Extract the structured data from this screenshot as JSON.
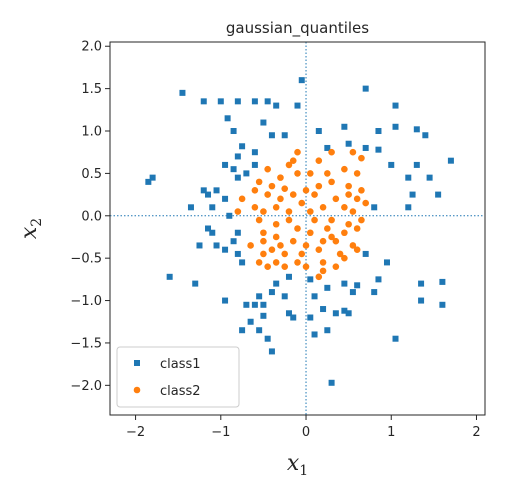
{
  "chart_data": {
    "type": "scatter",
    "title": "gaussian_quantiles",
    "xlabel": {
      "main": "x",
      "sub": "1"
    },
    "ylabel": {
      "main": "x",
      "sub": "2"
    },
    "xlim": [
      -2.3,
      2.1
    ],
    "ylim": [
      -2.35,
      2.05
    ],
    "xticks": [
      -2,
      -1,
      0,
      1,
      2
    ],
    "xtick_labels": [
      "−2",
      "−1",
      "0",
      "1",
      "2"
    ],
    "yticks": [
      -2.0,
      -1.5,
      -1.0,
      -0.5,
      0.0,
      0.5,
      1.0,
      1.5,
      2.0
    ],
    "ytick_labels": [
      "−2.0",
      "−1.5",
      "−1.0",
      "−0.5",
      "0.0",
      "0.5",
      "1.0",
      "1.5",
      "2.0"
    ],
    "reference_lines": {
      "x": 0,
      "y": 0,
      "style": "dotted",
      "color": "#1f77b4"
    },
    "grid": false,
    "legend": {
      "position": "lower-left"
    },
    "series": [
      {
        "name": "class1",
        "marker": "square",
        "color": "#1f77b4",
        "points": [
          [
            -1.45,
            1.45
          ],
          [
            -1.2,
            1.35
          ],
          [
            -1.0,
            1.35
          ],
          [
            -0.8,
            1.35
          ],
          [
            -0.6,
            1.35
          ],
          [
            -0.45,
            1.35
          ],
          [
            -0.35,
            1.3
          ],
          [
            -0.05,
            1.6
          ],
          [
            -0.1,
            1.3
          ],
          [
            0.7,
            1.5
          ],
          [
            1.05,
            1.3
          ],
          [
            -0.92,
            1.15
          ],
          [
            -0.5,
            1.1
          ],
          [
            -0.85,
            1.0
          ],
          [
            -0.4,
            0.95
          ],
          [
            -0.25,
            0.95
          ],
          [
            0.15,
            1.0
          ],
          [
            0.25,
            0.8
          ],
          [
            0.45,
            1.05
          ],
          [
            0.85,
            1.0
          ],
          [
            1.05,
            1.05
          ],
          [
            1.3,
            1.02
          ],
          [
            1.4,
            0.95
          ],
          [
            -0.75,
            0.82
          ],
          [
            -0.6,
            0.75
          ],
          [
            0.5,
            0.85
          ],
          [
            0.7,
            0.8
          ],
          [
            0.85,
            0.78
          ],
          [
            -0.8,
            0.7
          ],
          [
            -0.6,
            0.6
          ],
          [
            -0.85,
            0.55
          ],
          [
            -0.7,
            0.5
          ],
          [
            -0.8,
            0.45
          ],
          [
            -0.95,
            0.6
          ],
          [
            1.0,
            0.6
          ],
          [
            1.3,
            0.6
          ],
          [
            1.7,
            0.65
          ],
          [
            1.2,
            0.45
          ],
          [
            1.45,
            0.45
          ],
          [
            -1.8,
            0.45
          ],
          [
            -1.85,
            0.4
          ],
          [
            -1.2,
            0.3
          ],
          [
            -1.15,
            0.25
          ],
          [
            -1.05,
            0.3
          ],
          [
            -0.95,
            0.2
          ],
          [
            1.25,
            0.25
          ],
          [
            1.55,
            0.25
          ],
          [
            -1.35,
            0.1
          ],
          [
            -1.1,
            0.1
          ],
          [
            -0.9,
            0.0
          ],
          [
            0.8,
            0.1
          ],
          [
            1.2,
            0.1
          ],
          [
            -1.15,
            -0.15
          ],
          [
            -1.1,
            -0.2
          ],
          [
            -0.8,
            -0.2
          ],
          [
            -1.25,
            -0.35
          ],
          [
            -1.05,
            -0.35
          ],
          [
            -0.95,
            -0.4
          ],
          [
            -0.85,
            -0.3
          ],
          [
            -0.8,
            -0.45
          ],
          [
            0.7,
            -0.45
          ],
          [
            -0.75,
            -0.55
          ],
          [
            0.95,
            -0.55
          ],
          [
            -1.6,
            -0.72
          ],
          [
            -1.3,
            -0.8
          ],
          [
            0.85,
            -0.75
          ],
          [
            1.35,
            -0.8
          ],
          [
            1.6,
            -0.78
          ],
          [
            -0.35,
            -0.8
          ],
          [
            -0.2,
            -0.72
          ],
          [
            0.05,
            -0.75
          ],
          [
            0.25,
            -0.85
          ],
          [
            0.45,
            -0.8
          ],
          [
            0.6,
            -0.82
          ],
          [
            -0.4,
            -0.9
          ],
          [
            0.55,
            -0.9
          ],
          [
            0.8,
            -0.9
          ],
          [
            -0.55,
            -0.95
          ],
          [
            -0.25,
            -0.95
          ],
          [
            0.1,
            -0.95
          ],
          [
            -0.95,
            -1.0
          ],
          [
            -0.7,
            -1.05
          ],
          [
            -0.6,
            -1.05
          ],
          [
            -0.5,
            -1.05
          ],
          [
            1.35,
            -1.0
          ],
          [
            1.6,
            -1.05
          ],
          [
            0.2,
            -1.1
          ],
          [
            0.45,
            -1.12
          ],
          [
            0.5,
            -1.15
          ],
          [
            -0.5,
            -1.18
          ],
          [
            -0.2,
            -1.15
          ],
          [
            -0.15,
            -1.2
          ],
          [
            0.05,
            -1.2
          ],
          [
            0.35,
            -1.15
          ],
          [
            -0.65,
            -1.25
          ],
          [
            -0.55,
            -1.35
          ],
          [
            -0.45,
            -1.45
          ],
          [
            1.05,
            -1.45
          ],
          [
            -0.75,
            -1.35
          ],
          [
            0.1,
            -1.4
          ],
          [
            0.25,
            -1.35
          ],
          [
            -0.4,
            -1.6
          ],
          [
            0.3,
            -1.97
          ]
        ]
      },
      {
        "name": "class2",
        "marker": "circle",
        "color": "#ff7f0e",
        "points": [
          [
            -0.1,
            0.75
          ],
          [
            -0.15,
            0.65
          ],
          [
            0.15,
            0.65
          ],
          [
            0.3,
            0.75
          ],
          [
            0.55,
            0.75
          ],
          [
            0.65,
            0.68
          ],
          [
            -0.45,
            0.55
          ],
          [
            -0.3,
            0.45
          ],
          [
            -0.1,
            0.5
          ],
          [
            0.05,
            0.5
          ],
          [
            0.45,
            0.55
          ],
          [
            0.6,
            0.5
          ],
          [
            -0.55,
            0.4
          ],
          [
            -0.4,
            0.35
          ],
          [
            -0.25,
            0.32
          ],
          [
            0.15,
            0.35
          ],
          [
            0.3,
            0.4
          ],
          [
            0.5,
            0.35
          ],
          [
            -0.6,
            0.3
          ],
          [
            -0.45,
            0.25
          ],
          [
            -0.3,
            0.2
          ],
          [
            -0.15,
            0.25
          ],
          [
            0.0,
            0.3
          ],
          [
            0.1,
            0.25
          ],
          [
            0.35,
            0.2
          ],
          [
            0.5,
            0.25
          ],
          [
            0.6,
            0.2
          ],
          [
            0.65,
            0.3
          ],
          [
            -0.75,
            0.2
          ],
          [
            -0.6,
            0.1
          ],
          [
            -0.5,
            0.05
          ],
          [
            -0.35,
            0.1
          ],
          [
            -0.2,
            0.05
          ],
          [
            0.05,
            0.05
          ],
          [
            0.2,
            0.1
          ],
          [
            0.45,
            0.1
          ],
          [
            0.55,
            0.05
          ],
          [
            0.7,
            0.15
          ],
          [
            -0.8,
            0.05
          ],
          [
            -0.55,
            -0.05
          ],
          [
            -0.35,
            -0.1
          ],
          [
            -0.2,
            -0.05
          ],
          [
            0.1,
            -0.05
          ],
          [
            0.3,
            -0.05
          ],
          [
            0.5,
            -0.1
          ],
          [
            0.65,
            -0.05
          ],
          [
            -0.5,
            -0.2
          ],
          [
            -0.35,
            -0.25
          ],
          [
            -0.1,
            -0.15
          ],
          [
            0.05,
            -0.2
          ],
          [
            0.25,
            -0.15
          ],
          [
            0.45,
            -0.2
          ],
          [
            0.6,
            -0.15
          ],
          [
            -0.5,
            -0.3
          ],
          [
            -0.3,
            -0.35
          ],
          [
            -0.15,
            -0.3
          ],
          [
            0.0,
            -0.35
          ],
          [
            0.2,
            -0.3
          ],
          [
            0.35,
            -0.3
          ],
          [
            0.55,
            -0.35
          ],
          [
            -0.65,
            -0.35
          ],
          [
            -0.5,
            -0.45
          ],
          [
            -0.25,
            -0.45
          ],
          [
            -0.05,
            -0.45
          ],
          [
            0.15,
            -0.4
          ],
          [
            0.4,
            -0.45
          ],
          [
            0.6,
            -0.4
          ],
          [
            -0.55,
            -0.55
          ],
          [
            -0.35,
            -0.55
          ],
          [
            -0.1,
            -0.55
          ],
          [
            0.2,
            -0.55
          ],
          [
            0.45,
            -0.5
          ],
          [
            -0.45,
            -0.6
          ],
          [
            -0.25,
            -0.6
          ],
          [
            0.0,
            -0.6
          ],
          [
            0.2,
            -0.65
          ],
          [
            0.35,
            -0.6
          ],
          [
            0.15,
            -0.72
          ],
          [
            -0.4,
            -0.4
          ],
          [
            0.3,
            -0.25
          ],
          [
            -0.05,
            0.15
          ],
          [
            0.25,
            0.5
          ],
          [
            -0.2,
            0.6
          ]
        ]
      }
    ]
  }
}
